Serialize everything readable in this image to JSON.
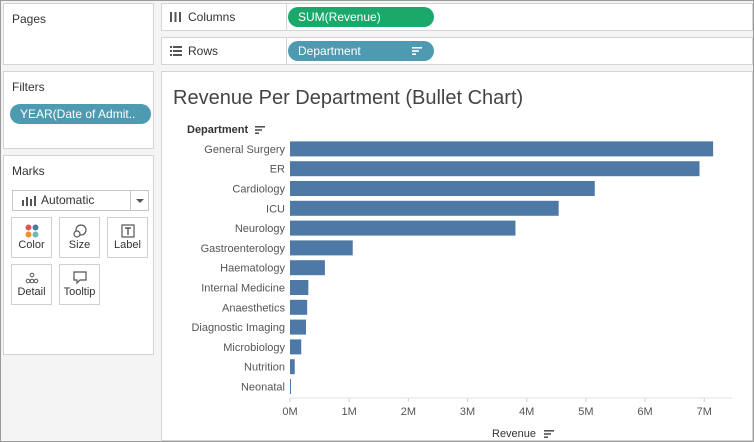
{
  "pages": {
    "title": "Pages"
  },
  "filters": {
    "title": "Filters",
    "pills": [
      {
        "label": "YEAR(Date of Admit.."
      }
    ]
  },
  "marks": {
    "title": "Marks",
    "mark_type": "Automatic",
    "buttons": [
      {
        "label": "Color",
        "icon": "color-dots-icon"
      },
      {
        "label": "Size",
        "icon": "size-circles-icon"
      },
      {
        "label": "Label",
        "icon": "text-label-icon"
      },
      {
        "label": "Detail",
        "icon": "detail-dots-icon"
      },
      {
        "label": "Tooltip",
        "icon": "tooltip-bubble-icon"
      }
    ]
  },
  "shelves": {
    "columns": {
      "label": "Columns",
      "pill": "SUM(Revenue)"
    },
    "rows": {
      "label": "Rows",
      "pill": "Department"
    }
  },
  "colors": {
    "bar": "#4e79a7",
    "measure_pill": "#1aa96a",
    "dimension_pill": "#4e9ab0"
  },
  "chart_data": {
    "type": "bar",
    "orientation": "horizontal",
    "title": "Revenue Per Department (Bullet Chart)",
    "ylabel": "Department",
    "xlabel": "Revenue",
    "categories": [
      "General Surgery",
      "ER",
      "Cardiology",
      "ICU",
      "Neurology",
      "Gastroenterology",
      "Haematology",
      "Internal Medicine",
      "Anaesthetics",
      "Diagnostic Imaging",
      "Microbiology",
      "Nutrition",
      "Neonatal"
    ],
    "values": [
      7150000,
      6920000,
      5150000,
      4540000,
      3810000,
      1060000,
      590000,
      310000,
      290000,
      270000,
      190000,
      80000,
      10000
    ],
    "xticks": [
      "0M",
      "1M",
      "2M",
      "3M",
      "4M",
      "5M",
      "6M",
      "7M"
    ],
    "xlim": [
      0,
      7300000
    ],
    "grid": false
  }
}
